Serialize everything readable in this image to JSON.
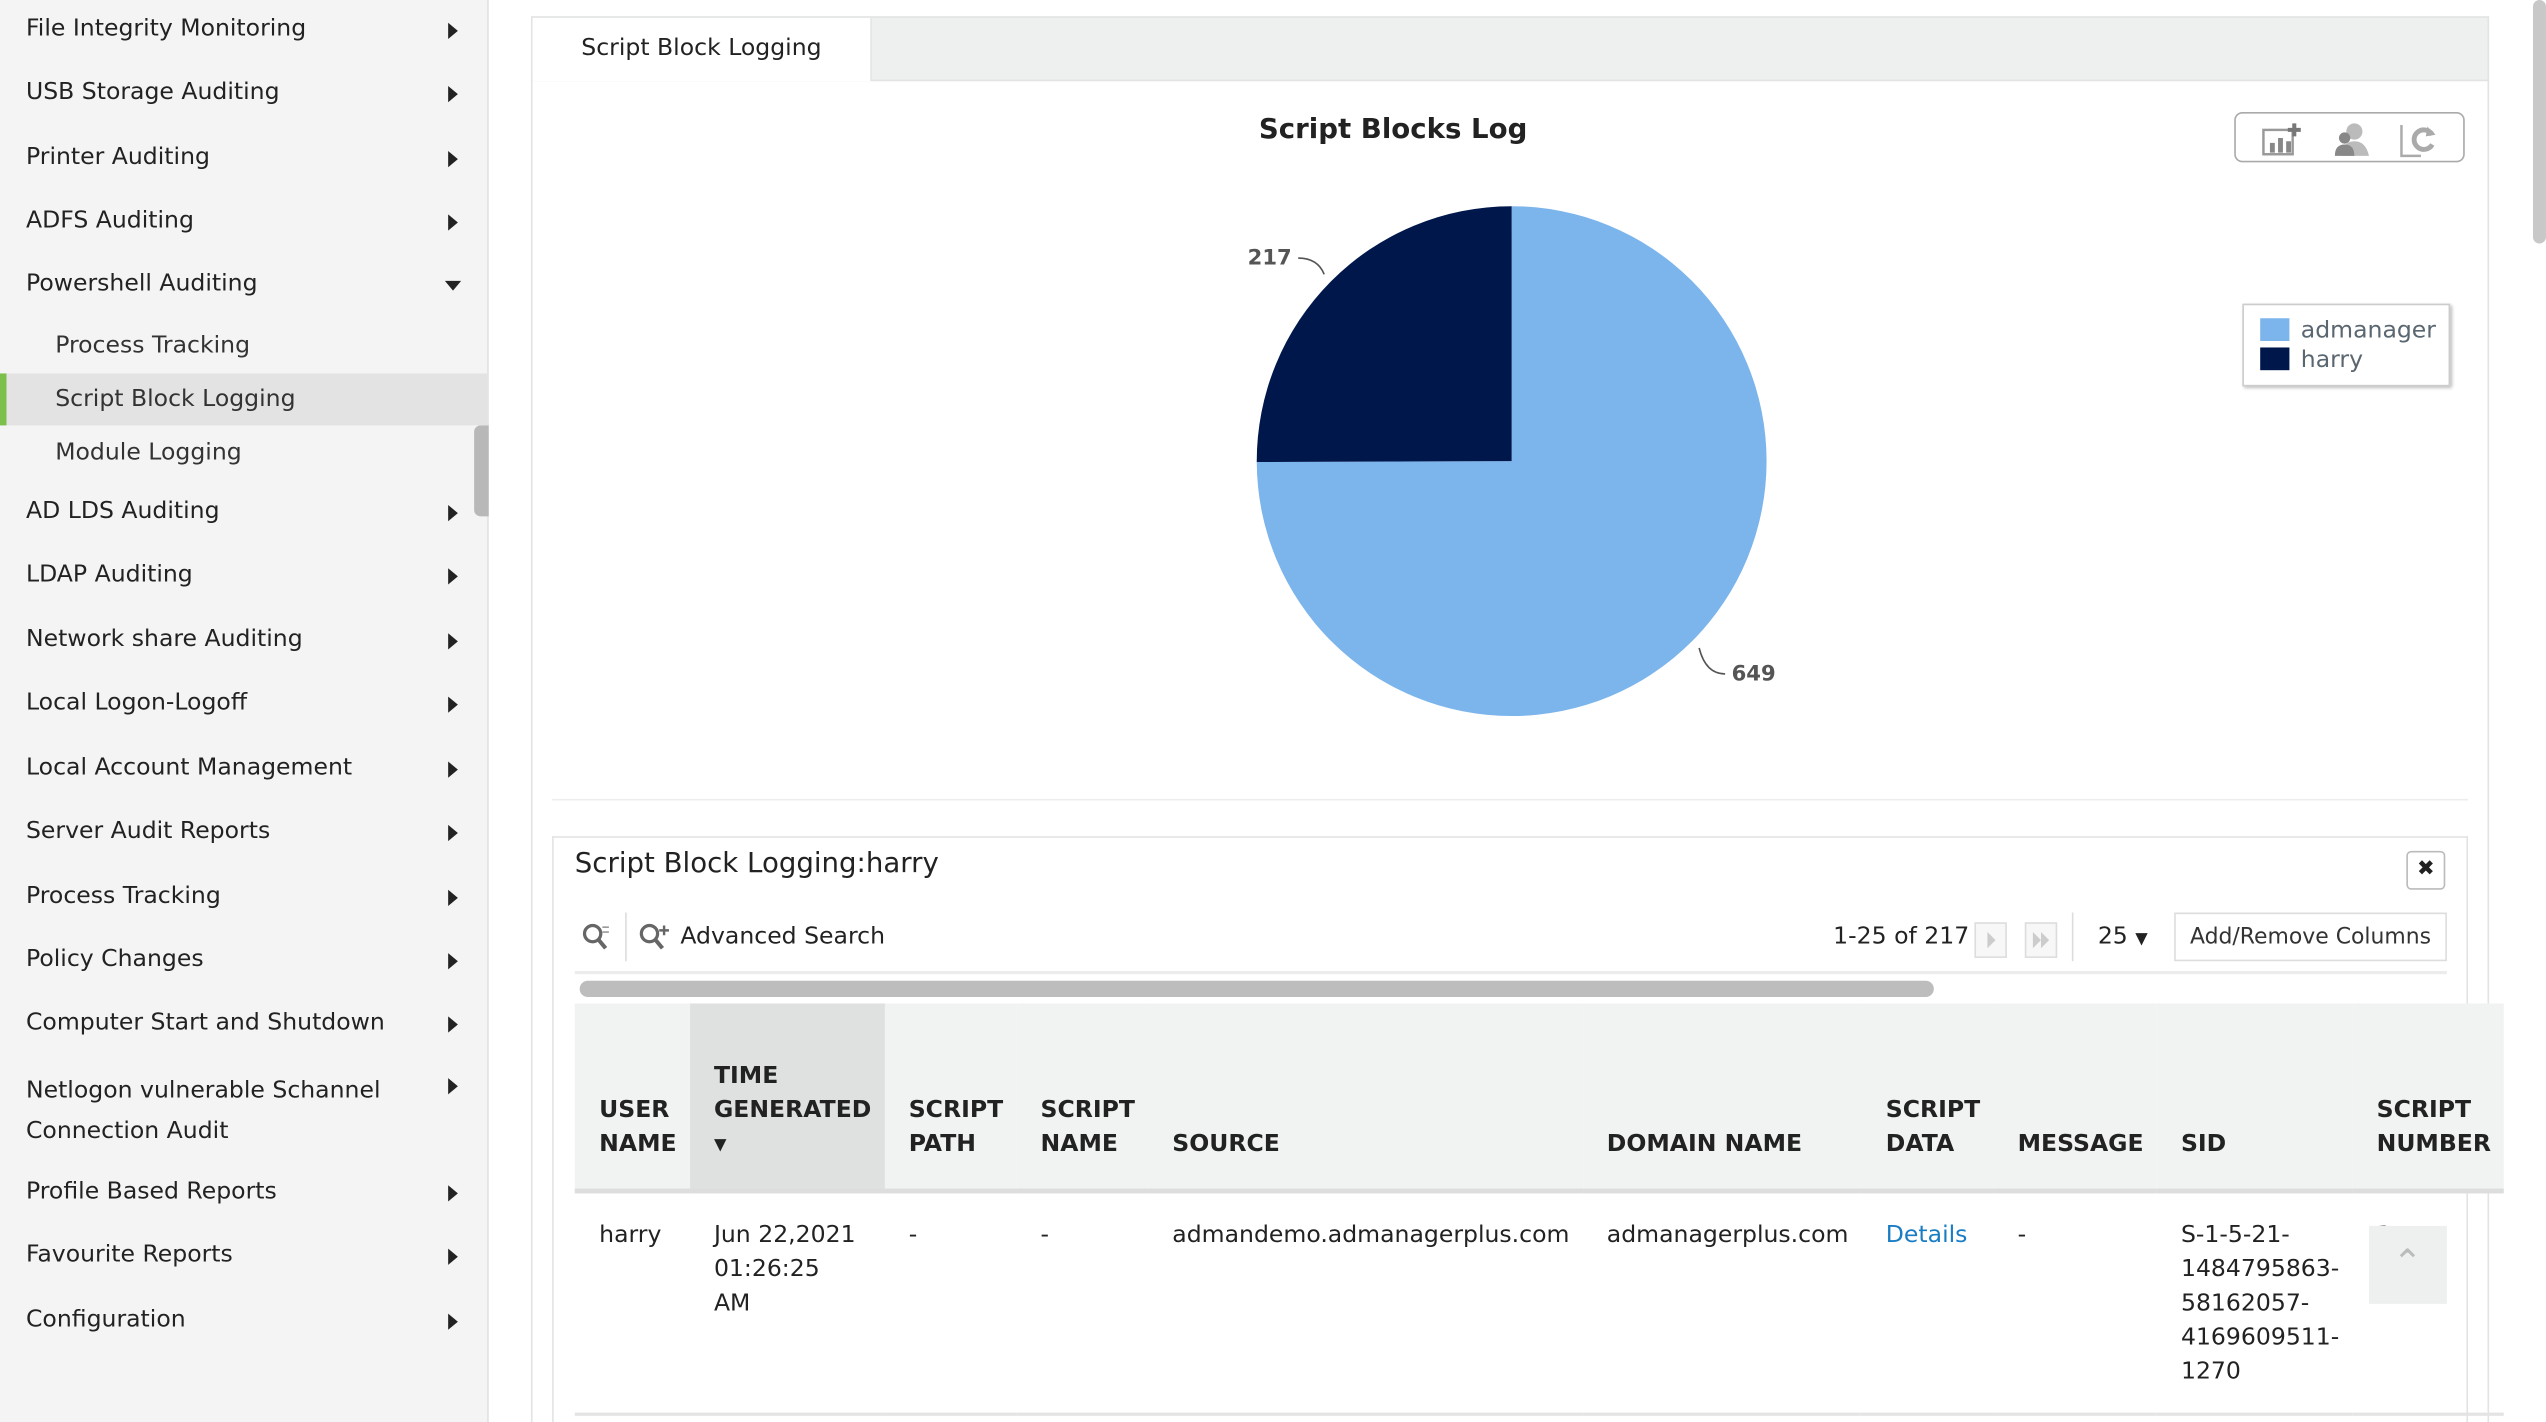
{
  "sidebar": {
    "items": [
      {
        "label": "File Integrity Monitoring",
        "expanded": false
      },
      {
        "label": "USB Storage Auditing",
        "expanded": false
      },
      {
        "label": "Printer Auditing",
        "expanded": false
      },
      {
        "label": "ADFS Auditing",
        "expanded": false
      },
      {
        "label": "Powershell Auditing",
        "expanded": true
      },
      {
        "label": "AD LDS Auditing",
        "expanded": false
      },
      {
        "label": "LDAP Auditing",
        "expanded": false
      },
      {
        "label": "Network share Auditing",
        "expanded": false
      },
      {
        "label": "Local Logon-Logoff",
        "expanded": false
      },
      {
        "label": "Local Account Management",
        "expanded": false
      },
      {
        "label": "Server Audit Reports",
        "expanded": false
      },
      {
        "label": "Process Tracking",
        "expanded": false
      },
      {
        "label": "Policy Changes",
        "expanded": false
      },
      {
        "label": "Computer Start and Shutdown",
        "expanded": false
      },
      {
        "label": "Netlogon vulnerable Schannel Connection Audit",
        "expanded": false
      },
      {
        "label": "Profile Based Reports",
        "expanded": false
      },
      {
        "label": "Favourite Reports",
        "expanded": false
      },
      {
        "label": "Configuration",
        "expanded": false
      }
    ],
    "subitems": [
      {
        "label": "Process Tracking"
      },
      {
        "label": "Script Block Logging",
        "active": true
      },
      {
        "label": "Module Logging"
      }
    ]
  },
  "tab": {
    "label": "Script Block Logging"
  },
  "chart_data": {
    "type": "pie",
    "title": "Script Blocks Log",
    "slices": [
      {
        "name": "admanager",
        "value": 649,
        "color": "#7cb5ec"
      },
      {
        "name": "harry",
        "value": 217,
        "color": "#00174b"
      }
    ],
    "legend": "right"
  },
  "grid": {
    "title": "Script Block Logging:harry",
    "advanced_search": "Advanced Search",
    "pagination": "1-25 of 217",
    "page_size": "25",
    "add_remove": "Add/Remove Columns",
    "columns": [
      [
        "USER",
        "NAME"
      ],
      [
        "TIME",
        "GENERATED"
      ],
      [
        "SCRIPT",
        "PATH"
      ],
      [
        "SCRIPT",
        "NAME"
      ],
      [
        "SOURCE"
      ],
      [
        "DOMAIN NAME"
      ],
      [
        "SCRIPT",
        "DATA"
      ],
      [
        "MESSAGE"
      ],
      [
        "SID"
      ],
      [
        "SCRIPT",
        "NUMBER"
      ]
    ],
    "rows": [
      {
        "user": "harry",
        "time": [
          "Jun 22,2021",
          "01:26:25",
          "AM"
        ],
        "path": "-",
        "name": "-",
        "source": "admandemo.admanagerplus.com",
        "domain": "admanagerplus.com",
        "data": "Details",
        "message": "-",
        "sid": [
          "S-1-5-21-",
          "1484795863-",
          "58162057-",
          "4169609511-",
          "1270"
        ],
        "number": "1"
      }
    ]
  },
  "colors": {
    "accent": "#7cc04b",
    "link": "#1a7dc4"
  }
}
